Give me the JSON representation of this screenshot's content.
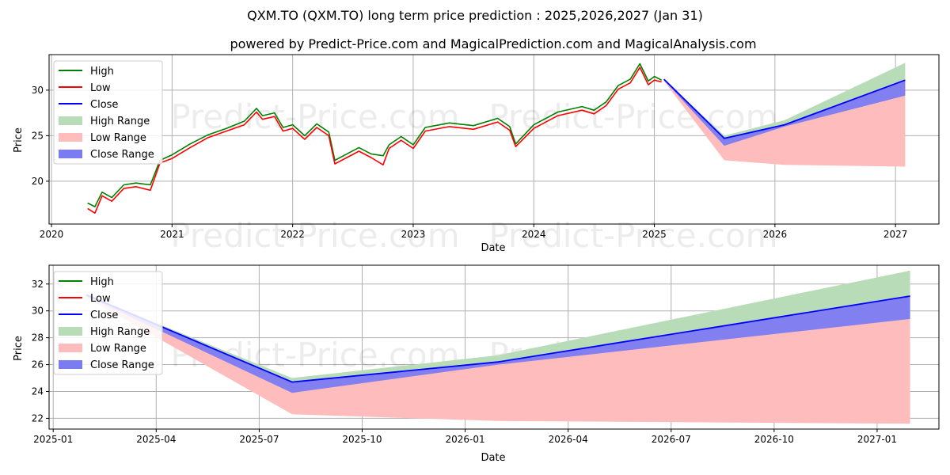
{
  "title": "QXM.TO (QXM.TO) long term price prediction : 2025,2026,2027 (Jan 31)",
  "subtitle": "powered by Predict-Price.com and MagicalPrediction.com and MagicalAnalysis.com",
  "watermark": "Predict-Price.com",
  "colors": {
    "high": "#008000",
    "low": "#ff0000",
    "close": "#0000ff",
    "high_range": "#b7dcb7",
    "low_range": "#ffbcbc",
    "close_range": "#7b7bf2"
  },
  "legend": [
    "High",
    "Low",
    "Close",
    "High Range",
    "Low Range",
    "Close Range"
  ],
  "chart_data": [
    {
      "type": "line",
      "xlabel": "Date",
      "ylabel": "Price",
      "xlim": [
        2019.98,
        2027.36
      ],
      "ylim": [
        15.3,
        33.9
      ],
      "xticks": [
        2020,
        2021,
        2022,
        2023,
        2024,
        2025,
        2026,
        2027
      ],
      "xtick_labels": [
        "2020",
        "2021",
        "2022",
        "2023",
        "2024",
        "2025",
        "2026",
        "2027"
      ],
      "yticks": [
        20,
        25,
        30
      ],
      "ytick_labels": [
        "20",
        "25",
        "30"
      ],
      "grid": true,
      "legend_position": "top-left",
      "history": {
        "x": [
          2020.3,
          2020.36,
          2020.42,
          2020.5,
          2020.6,
          2020.7,
          2020.82,
          2020.9,
          2021.0,
          2021.15,
          2021.3,
          2021.45,
          2021.6,
          2021.7,
          2021.75,
          2021.85,
          2021.92,
          2022.0,
          2022.1,
          2022.2,
          2022.3,
          2022.35,
          2022.45,
          2022.55,
          2022.65,
          2022.75,
          2022.8,
          2022.9,
          2023.0,
          2023.1,
          2023.3,
          2023.5,
          2023.7,
          2023.8,
          2023.85,
          2024.0,
          2024.2,
          2024.4,
          2024.5,
          2024.6,
          2024.7,
          2024.8,
          2024.88,
          2024.95,
          2025.0,
          2025.06
        ],
        "high": [
          17.6,
          17.2,
          18.8,
          18.2,
          19.6,
          19.8,
          19.6,
          22.3,
          22.9,
          24.1,
          25.1,
          25.8,
          26.6,
          28.0,
          27.2,
          27.5,
          25.9,
          26.2,
          25.0,
          26.3,
          25.4,
          22.3,
          23.0,
          23.7,
          23.0,
          22.8,
          24.0,
          24.9,
          24.0,
          25.9,
          26.4,
          26.1,
          26.9,
          26.0,
          24.1,
          26.2,
          27.6,
          28.2,
          27.8,
          28.7,
          30.5,
          31.2,
          32.9,
          31.0,
          31.5,
          31.1
        ],
        "low": [
          17.0,
          16.5,
          18.4,
          17.8,
          19.2,
          19.4,
          19.0,
          22.0,
          22.5,
          23.7,
          24.8,
          25.5,
          26.2,
          27.6,
          26.8,
          27.1,
          25.5,
          25.8,
          24.6,
          25.9,
          25.0,
          21.9,
          22.6,
          23.3,
          22.6,
          21.8,
          23.6,
          24.5,
          23.6,
          25.5,
          26.0,
          25.7,
          26.5,
          25.6,
          23.8,
          25.8,
          27.2,
          27.8,
          27.4,
          28.3,
          30.1,
          30.8,
          32.5,
          30.6,
          31.1,
          30.9
        ]
      },
      "forecast": {
        "x": [
          2025.08,
          2025.58,
          2026.08,
          2027.08
        ],
        "close": [
          31.2,
          24.7,
          26.2,
          31.1
        ],
        "high_range_upper": [
          31.2,
          25.0,
          26.7,
          33.0
        ],
        "low_range_lower": [
          31.0,
          22.3,
          21.8,
          21.6
        ],
        "close_range_lower": [
          31.1,
          23.9,
          26.0,
          29.4
        ]
      }
    },
    {
      "type": "line",
      "xlabel": "Date",
      "ylabel": "Price",
      "xlim": [
        2024.99,
        2027.15
      ],
      "ylim": [
        21.2,
        33.4
      ],
      "xticks": [
        2025.0,
        2025.25,
        2025.5,
        2025.75,
        2026.0,
        2026.25,
        2026.5,
        2026.75,
        2027.0
      ],
      "xtick_labels": [
        "2025-01",
        "2025-04",
        "2025-07",
        "2025-10",
        "2026-01",
        "2026-04",
        "2026-07",
        "2026-10",
        "2027-01"
      ],
      "yticks": [
        22,
        24,
        26,
        28,
        30,
        32
      ],
      "ytick_labels": [
        "22",
        "24",
        "26",
        "28",
        "30",
        "32"
      ],
      "grid": true,
      "legend_position": "top-left",
      "forecast": {
        "x": [
          2025.08,
          2025.58,
          2026.08,
          2027.08
        ],
        "close": [
          31.2,
          24.7,
          26.2,
          31.1
        ],
        "high_range_upper": [
          31.2,
          25.0,
          26.7,
          33.0
        ],
        "low_range_lower": [
          31.0,
          22.3,
          21.8,
          21.6
        ],
        "close_range_lower": [
          31.1,
          23.9,
          26.0,
          29.4
        ]
      }
    }
  ]
}
